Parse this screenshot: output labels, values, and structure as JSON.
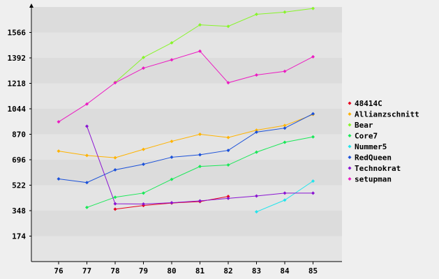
{
  "chart_data": {
    "type": "line",
    "title": "",
    "xlabel": "",
    "ylabel": "",
    "categories": [
      "76",
      "77",
      "78",
      "79",
      "80",
      "81",
      "82",
      "83",
      "84",
      "85"
    ],
    "y_ticks": [
      "174",
      "348",
      "522",
      "696",
      "870",
      "1044",
      "1218",
      "1392",
      "1566"
    ],
    "ylim": [
      0,
      1740
    ],
    "grid": "horizontal bands",
    "legend_position": "right",
    "series": [
      {
        "name": "48414C",
        "color": "#e8001c",
        "values": [
          null,
          null,
          358,
          383,
          400,
          410,
          445,
          null,
          null,
          null
        ]
      },
      {
        "name": "Allianzschnitt",
        "color": "#ffb300",
        "values": [
          755,
          725,
          710,
          767,
          822,
          870,
          848,
          898,
          930,
          1005
        ]
      },
      {
        "name": "Bear",
        "color": "#88f52a",
        "values": [
          null,
          null,
          1225,
          1395,
          1495,
          1618,
          1608,
          1690,
          1705,
          1730
        ]
      },
      {
        "name": "Core7",
        "color": "#1ae858",
        "values": [
          null,
          370,
          440,
          468,
          562,
          650,
          660,
          748,
          815,
          852
        ]
      },
      {
        "name": "Nummer5",
        "color": "#22e4ec",
        "values": [
          null,
          null,
          null,
          null,
          null,
          null,
          null,
          340,
          420,
          550
        ]
      },
      {
        "name": "RedQueen",
        "color": "#1b51d9",
        "values": [
          565,
          540,
          627,
          665,
          713,
          730,
          760,
          885,
          912,
          1010
        ]
      },
      {
        "name": "Technokrat",
        "color": "#8a14d2",
        "values": [
          null,
          925,
          395,
          393,
          402,
          415,
          432,
          448,
          468,
          468
        ]
      },
      {
        "name": "setupman",
        "color": "#ec1bc2",
        "values": [
          955,
          1077,
          1222,
          1322,
          1379,
          1438,
          1222,
          1275,
          1300,
          1400
        ]
      }
    ]
  }
}
